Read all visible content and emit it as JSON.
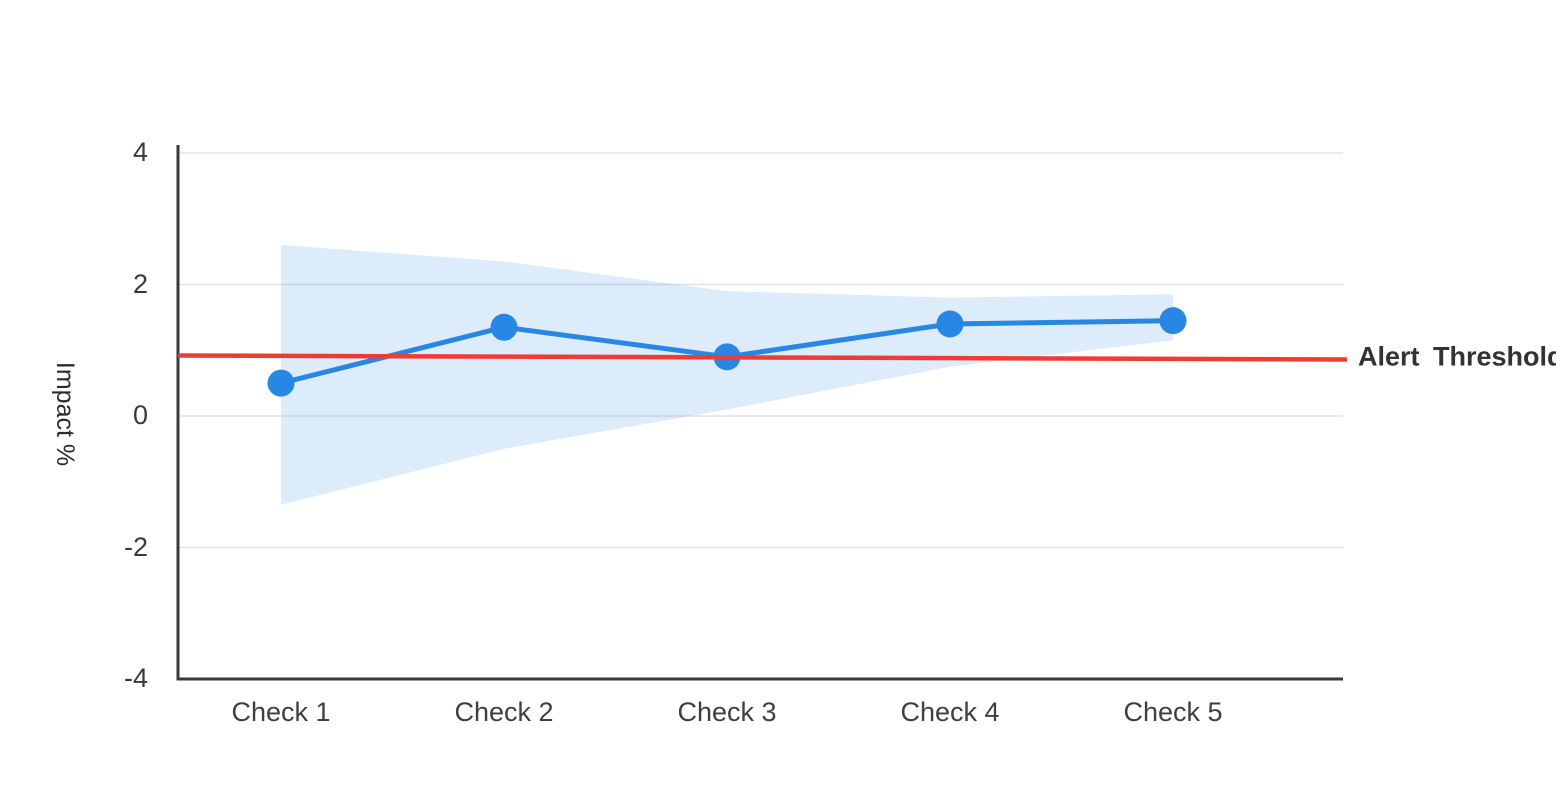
{
  "chart_data": {
    "type": "line",
    "title": "",
    "categories": [
      "Check 1",
      "Check 2",
      "Check 3",
      "Check 4",
      "Check 5"
    ],
    "series_name": "Impact",
    "values": [
      0.5,
      1.35,
      0.9,
      1.4,
      1.45
    ],
    "band": {
      "name": "confidence-interval",
      "upper": [
        2.6,
        2.35,
        1.9,
        1.8,
        1.85
      ],
      "lower": [
        -1.35,
        -0.5,
        0.1,
        0.75,
        1.15
      ]
    },
    "threshold": {
      "label": "Alert Threshold",
      "value": 0.9,
      "start": 0.92,
      "end": 0.86
    },
    "xlabel": "",
    "ylabel": "Impact %",
    "ylim": [
      -4,
      4
    ],
    "yticks": [
      4,
      2,
      0,
      -2,
      -4
    ],
    "ytick_labels": [
      "4",
      "2",
      "0",
      "-2",
      "-4"
    ],
    "grid": true,
    "legend": "none",
    "colors": {
      "series": "#2787e2",
      "band_fill": "#dcebfb",
      "threshold": "#ee3b35",
      "grid": "#e3e3e3",
      "axis": "#3a3a3a",
      "text": "#3a3a3a",
      "background": "#ffffff"
    }
  }
}
